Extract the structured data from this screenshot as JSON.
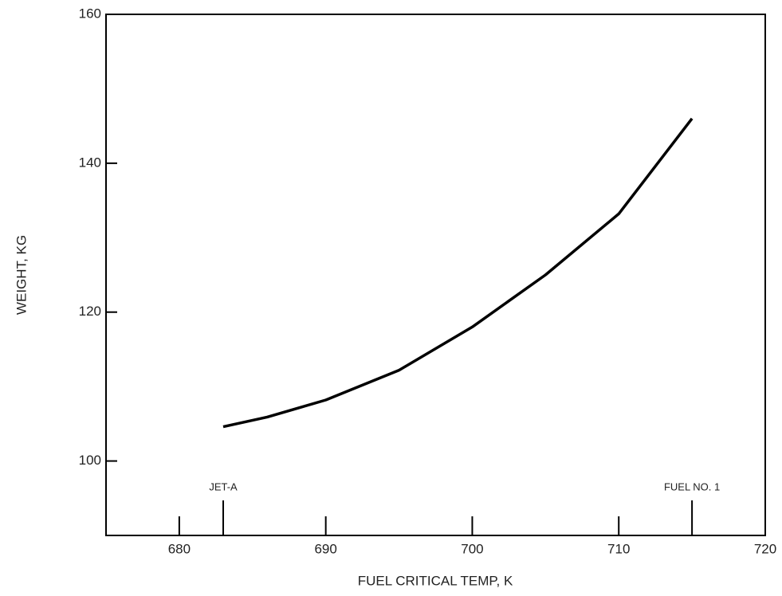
{
  "chart_data": {
    "type": "line",
    "xlabel": "FUEL CRITICAL TEMP, K",
    "ylabel": "WEIGHT, KG",
    "x": [
      683,
      686,
      690,
      695,
      700,
      705,
      710,
      715
    ],
    "series": [
      {
        "color": "#000000",
        "values": [
          104.6,
          105.9,
          108.2,
          112.2,
          118,
          125,
          133.2,
          146
        ]
      }
    ],
    "xlim": [
      675,
      720
    ],
    "xticks": [
      680,
      690,
      700,
      710,
      720
    ],
    "ylim": [
      90,
      160
    ],
    "yticks": [
      100,
      120,
      140,
      160
    ],
    "annotations": [
      {
        "text": "JET-A",
        "x": 683
      },
      {
        "text": "FUEL NO. 1",
        "x": 715
      }
    ]
  }
}
